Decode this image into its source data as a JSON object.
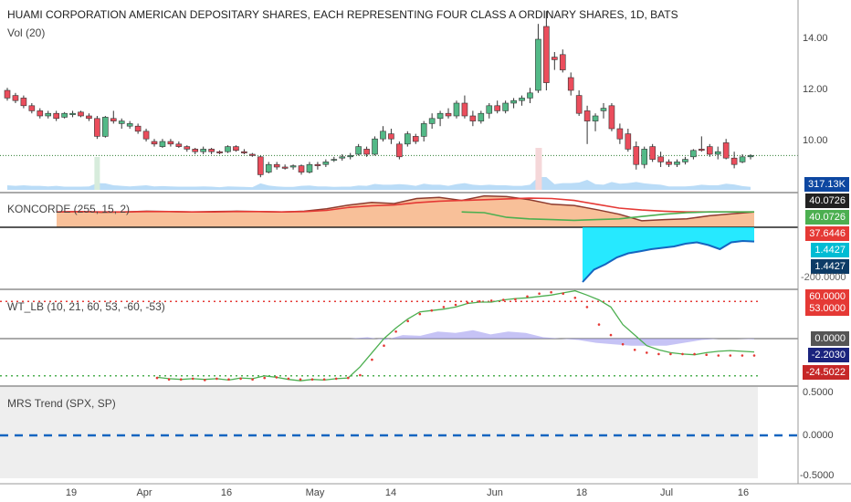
{
  "header": {
    "title": "HUAMI CORPORATION AMERICAN DEPOSITARY SHARES, EACH REPRESENTING FOUR CLASS A ORDINARY SHARES, 1D, BATS",
    "volume_label": "Vol (20)"
  },
  "panes": {
    "koncorde": {
      "label": "KONCORDE (255, 15, 2)"
    },
    "wt_lb": {
      "label": "WT_LB (10, 21, 60, 53, -60, -53)"
    },
    "mrs": {
      "label": "MRS Trend (SPX, SP)"
    }
  },
  "price_axis": {
    "ticks": [
      "14.00",
      "12.00",
      "10.00"
    ]
  },
  "mrs_axis": {
    "ticks": [
      "0.5000",
      "0.0000",
      "-0.5000"
    ]
  },
  "badges": {
    "volume": "317.13K",
    "koncorde_1": "40.0726",
    "koncorde_2": "40.0726",
    "koncorde_3": "37.6446",
    "koncorde_4": "1.4427",
    "koncorde_5": "1.4427",
    "koncorde_6": "-200.0000",
    "wt_1": "60.0000",
    "wt_2": "53.0000",
    "wt_3": "0.0000",
    "wt_4": "-2.2030",
    "wt_5": "-24.5022"
  },
  "x_axis": {
    "ticks": [
      "19",
      "Apr",
      "16",
      "May",
      "14",
      "Jun",
      "18",
      "Jul",
      "16"
    ]
  },
  "colors": {
    "up": "#53b987",
    "down": "#eb4d5c",
    "volume": "#a9d3f5",
    "koncorde_fill": "#f7b98e",
    "koncorde_line": "#e53935",
    "cyan": "#00e5ff",
    "blue": "#1565c0",
    "wt_green": "#4caf50",
    "wt_red": "#e53935",
    "wt_band": "#a7a3f0",
    "mrs_dash": "#1565c0",
    "mrs_bg": "#eeeeee"
  },
  "chart_data": [
    {
      "type": "candlestick",
      "title": "HUAMI CORPORATION AMERICAN DEPOSITARY SHARES, EACH REPRESENTING FOUR CLASS A ORDINARY SHARES, 1D, BATS",
      "ylim": [
        8.2,
        15.2
      ],
      "last_price_line": 9.45,
      "candles": [
        [
          12.0,
          12.1,
          11.6,
          11.7
        ],
        [
          11.8,
          11.9,
          11.5,
          11.6
        ],
        [
          11.7,
          11.8,
          11.3,
          11.4
        ],
        [
          11.4,
          11.5,
          11.1,
          11.2
        ],
        [
          11.2,
          11.3,
          10.9,
          11.0
        ],
        [
          11.0,
          11.2,
          10.9,
          11.1
        ],
        [
          11.1,
          11.2,
          10.8,
          10.9
        ],
        [
          10.95,
          11.15,
          10.9,
          11.1
        ],
        [
          11.05,
          11.2,
          10.95,
          11.1
        ],
        [
          11.15,
          11.2,
          10.95,
          11.0
        ],
        [
          11.0,
          11.1,
          10.8,
          10.9
        ],
        [
          10.9,
          11.0,
          10.1,
          10.2
        ],
        [
          10.2,
          11.0,
          10.15,
          10.95
        ],
        [
          10.9,
          11.2,
          10.7,
          10.8
        ],
        [
          10.7,
          10.9,
          10.5,
          10.8
        ],
        [
          10.6,
          10.8,
          10.5,
          10.7
        ],
        [
          10.6,
          10.7,
          10.3,
          10.4
        ],
        [
          10.4,
          10.5,
          10.0,
          10.1
        ],
        [
          10.0,
          10.1,
          9.8,
          9.9
        ],
        [
          9.8,
          10.1,
          9.75,
          10.0
        ],
        [
          10.0,
          10.1,
          9.8,
          9.9
        ],
        [
          9.9,
          10.0,
          9.75,
          9.8
        ],
        [
          9.8,
          9.85,
          9.6,
          9.7
        ],
        [
          9.7,
          9.75,
          9.5,
          9.6
        ],
        [
          9.6,
          9.8,
          9.5,
          9.7
        ],
        [
          9.7,
          9.75,
          9.5,
          9.6
        ],
        [
          9.6,
          9.65,
          9.5,
          9.55
        ],
        [
          9.6,
          9.85,
          9.55,
          9.8
        ],
        [
          9.8,
          9.85,
          9.6,
          9.65
        ],
        [
          9.6,
          9.7,
          9.5,
          9.55
        ],
        [
          9.5,
          9.55,
          9.4,
          9.45
        ],
        [
          9.4,
          9.45,
          8.6,
          8.7
        ],
        [
          8.8,
          9.2,
          8.75,
          9.1
        ],
        [
          9.1,
          9.2,
          8.9,
          9.0
        ],
        [
          9.0,
          9.1,
          8.9,
          8.95
        ],
        [
          9.0,
          9.1,
          8.9,
          9.05
        ],
        [
          9.05,
          9.1,
          8.7,
          8.8
        ],
        [
          8.8,
          9.2,
          8.75,
          9.1
        ],
        [
          9.1,
          9.2,
          8.9,
          9.05
        ],
        [
          9.1,
          9.3,
          9.0,
          9.2
        ],
        [
          9.3,
          9.4,
          9.2,
          9.3
        ],
        [
          9.35,
          9.5,
          9.25,
          9.4
        ],
        [
          9.4,
          9.55,
          9.3,
          9.45
        ],
        [
          9.5,
          9.9,
          9.45,
          9.8
        ],
        [
          9.7,
          9.8,
          9.4,
          9.5
        ],
        [
          9.5,
          10.2,
          9.45,
          10.1
        ],
        [
          10.1,
          10.6,
          10.0,
          10.4
        ],
        [
          10.3,
          10.5,
          9.9,
          10.1
        ],
        [
          9.9,
          10.0,
          9.3,
          9.4
        ],
        [
          9.9,
          10.4,
          9.8,
          10.3
        ],
        [
          10.2,
          10.3,
          9.9,
          10.0
        ],
        [
          10.2,
          10.8,
          10.0,
          10.7
        ],
        [
          10.7,
          11.1,
          10.5,
          10.9
        ],
        [
          10.9,
          11.2,
          10.6,
          11.1
        ],
        [
          11.1,
          11.3,
          10.9,
          11.0
        ],
        [
          11.0,
          11.6,
          10.9,
          11.5
        ],
        [
          11.5,
          11.8,
          10.9,
          11.0
        ],
        [
          11.0,
          11.2,
          10.6,
          10.8
        ],
        [
          10.8,
          11.2,
          10.7,
          11.1
        ],
        [
          11.1,
          11.5,
          10.9,
          11.4
        ],
        [
          11.4,
          11.6,
          11.1,
          11.2
        ],
        [
          11.2,
          11.6,
          11.1,
          11.5
        ],
        [
          11.5,
          11.7,
          11.3,
          11.6
        ],
        [
          11.6,
          11.8,
          11.4,
          11.7
        ],
        [
          11.7,
          12.1,
          11.5,
          11.9
        ],
        [
          12.0,
          14.6,
          11.9,
          14.0
        ],
        [
          14.5,
          15.1,
          12.0,
          12.3
        ],
        [
          13.3,
          13.5,
          12.8,
          13.2
        ],
        [
          13.4,
          13.6,
          12.7,
          12.8
        ],
        [
          12.5,
          12.7,
          11.8,
          12.0
        ],
        [
          11.8,
          12.0,
          11.0,
          11.1
        ],
        [
          11.2,
          11.4,
          9.9,
          10.8
        ],
        [
          10.8,
          11.1,
          10.4,
          11.0
        ],
        [
          11.2,
          11.5,
          10.9,
          11.3
        ],
        [
          11.4,
          11.5,
          10.4,
          10.5
        ],
        [
          10.5,
          10.7,
          9.9,
          10.1
        ],
        [
          10.3,
          10.5,
          9.6,
          9.7
        ],
        [
          9.8,
          10.0,
          8.9,
          9.1
        ],
        [
          9.1,
          9.8,
          8.95,
          9.7
        ],
        [
          9.8,
          9.9,
          9.2,
          9.3
        ],
        [
          9.4,
          9.6,
          9.0,
          9.2
        ],
        [
          9.2,
          9.3,
          9.0,
          9.1
        ],
        [
          9.1,
          9.3,
          9.0,
          9.2
        ],
        [
          9.2,
          9.4,
          9.1,
          9.3
        ],
        [
          9.4,
          9.7,
          9.3,
          9.65
        ],
        [
          9.7,
          10.2,
          9.6,
          9.65
        ],
        [
          9.8,
          9.9,
          9.4,
          9.5
        ],
        [
          9.5,
          9.8,
          9.3,
          9.6
        ],
        [
          9.95,
          10.1,
          9.3,
          9.35
        ],
        [
          9.35,
          9.6,
          8.95,
          9.1
        ],
        [
          9.2,
          9.5,
          9.15,
          9.4
        ],
        [
          9.4,
          9.5,
          9.3,
          9.45
        ]
      ]
    },
    {
      "type": "area",
      "title": "KONCORDE (255, 15, 2)",
      "series": [
        {
          "values": [
            40,
            41,
            39,
            40,
            42,
            41,
            40,
            41,
            42,
            41,
            40,
            42,
            48,
            58,
            65,
            62,
            75,
            78,
            70,
            82,
            80,
            72,
            60,
            57,
            46,
            34,
            17,
            20,
            22,
            30,
            35,
            40
          ]
        },
        {
          "values": [
            40,
            41,
            40,
            40,
            41,
            41,
            40,
            40,
            41,
            41,
            40,
            41,
            44,
            52,
            56,
            58,
            64,
            68,
            70,
            72,
            74,
            76,
            75,
            70,
            60,
            50,
            45,
            42,
            40,
            40,
            40,
            40
          ]
        },
        {
          "values": [
            -200,
            -155,
            -135,
            -110,
            -95,
            -88,
            -80,
            -75,
            -70,
            -60,
            -55,
            -65,
            -80,
            -55,
            -50,
            -52
          ]
        }
      ]
    },
    {
      "type": "line",
      "title": "WT_LB (10, 21, 60, 53, -60, -53)",
      "ylim": [
        -70,
        75
      ],
      "series": [
        {
          "values": [
            -55,
            -57,
            -58,
            -57,
            -58,
            -57,
            -59,
            -56,
            -57,
            -53,
            -55,
            -58,
            -60,
            -58,
            -59,
            -57,
            -56,
            -40,
            -20,
            0,
            15,
            28,
            38,
            40,
            42,
            45,
            50,
            52,
            52,
            55,
            57,
            58,
            60,
            62,
            65,
            68,
            62,
            55,
            45,
            20,
            5,
            -10,
            -16,
            -20,
            -22,
            -23,
            -20,
            -18,
            -17,
            -18,
            -19
          ]
        },
        {
          "values": [
            -56,
            -58,
            -58,
            -57,
            -59,
            -57,
            -58,
            -57,
            -58,
            -56,
            -55,
            -57,
            -58,
            -58,
            -58,
            -57,
            -56,
            -52,
            -30,
            -10,
            10,
            25,
            35,
            40,
            45,
            48,
            51,
            53,
            54,
            55,
            56,
            60,
            64,
            66,
            64,
            58,
            45,
            20,
            5,
            -8,
            -16,
            -20,
            -22,
            -22,
            -22,
            -22,
            -23,
            -24,
            -24,
            -24,
            -24
          ]
        },
        {
          "values": [
            0,
            0,
            0,
            0,
            0,
            0,
            0,
            0,
            0,
            0,
            2,
            -2,
            5,
            4,
            10,
            8,
            12,
            6,
            10,
            8,
            2,
            0,
            -2,
            -6,
            -8,
            -10,
            -10,
            -10,
            -6,
            -2,
            0,
            0,
            -1
          ]
        }
      ]
    },
    {
      "type": "line",
      "title": "MRS Trend (SPX, SP)",
      "ylim": [
        -0.5,
        0.5
      ],
      "series": [
        {
          "values": [
            0,
            0
          ]
        }
      ]
    }
  ]
}
